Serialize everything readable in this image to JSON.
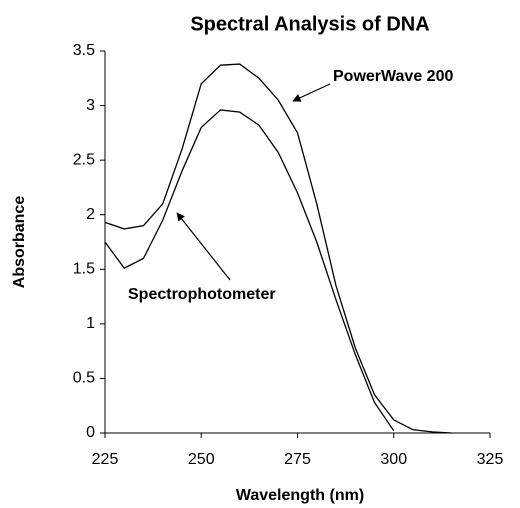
{
  "chart_data": {
    "type": "line",
    "title": "Spectral Analysis of DNA",
    "x_label": "Wavelength (nm)",
    "y_label": "Absorbance",
    "x": [
      225,
      230,
      235,
      240,
      245,
      250,
      255,
      260,
      265,
      270,
      275,
      280,
      285,
      290,
      295,
      300,
      305,
      310,
      315
    ],
    "series": [
      {
        "name": "PowerWave 200",
        "color": "#000000",
        "values": [
          1.93,
          1.87,
          1.9,
          2.1,
          2.6,
          3.2,
          3.37,
          3.38,
          3.25,
          3.05,
          2.75,
          2.1,
          1.35,
          0.78,
          0.35,
          0.12,
          0.03,
          0.01,
          0.0
        ]
      },
      {
        "name": "Spectrophotometer",
        "color": "#000000",
        "values": [
          1.75,
          1.51,
          1.6,
          1.95,
          2.4,
          2.8,
          2.96,
          2.94,
          2.82,
          2.57,
          2.2,
          1.75,
          1.22,
          0.72,
          0.28,
          0.02,
          null,
          null,
          null
        ]
      }
    ],
    "xlim": [
      225,
      325
    ],
    "xticks": [
      225,
      250,
      275,
      300,
      325
    ],
    "ylim": [
      0,
      3.5
    ],
    "yticks": [
      0,
      0.5,
      1,
      1.5,
      2,
      2.5,
      3,
      3.5
    ],
    "grid": false
  }
}
